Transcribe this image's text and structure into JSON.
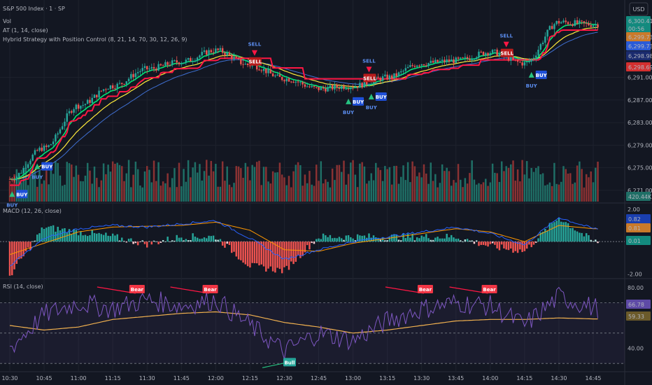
{
  "legend": {
    "symbol": "S&P 500 Index · 1 · SP",
    "vol": "Vol",
    "at": "AT (1, 14, close)",
    "strategy": "Hybrid Strategy with Position Control (8, 21, 14, 70, 30, 12, 26, 9)",
    "macd": "MACD (12, 26, close)",
    "rsi": "RSI (14, close)"
  },
  "currency": "USD",
  "colors": {
    "up": "#26a69a",
    "down": "#ef5350",
    "bg": "#131722",
    "grid": "#1e222d",
    "macd": "#2962ff",
    "signal": "#ff9800",
    "rsi": "#7e57c2",
    "rsima": "#f0b04f",
    "buy": "#1e4fd8",
    "sell": "#b71c1c"
  },
  "price_badges": {
    "last": "6,300.41",
    "countdown": "00:56",
    "orange": "6,299.73",
    "blue": "6,299.73",
    "navy": "6,298.98",
    "red": "6,298.69",
    "vol": "420.44K"
  },
  "macd_badges": {
    "macd": "0.82",
    "signal": "0.81",
    "hist": "0.01"
  },
  "rsi_badges": {
    "rsi": "66.78",
    "ma": "59.33"
  },
  "chart_data": [
    {
      "type": "line",
      "title": "S&P 500 Index · 1 · SP",
      "x": [
        "10:30",
        "10:45",
        "11:00",
        "11:15",
        "11:30",
        "11:45",
        "12:00",
        "12:15",
        "12:30",
        "12:45",
        "13:00",
        "13:15",
        "13:30",
        "13:45",
        "14:00",
        "14:15",
        "14:30",
        "14:45"
      ],
      "series": [
        {
          "values": [
            6273.0,
            6278.5,
            6286.0,
            6289.5,
            6292.5,
            6293.8,
            6295.8,
            6293.2,
            6290.8,
            6289.0,
            6289.5,
            6291.0,
            6293.5,
            6294.0,
            6295.5,
            6293.5,
            6300.8,
            6300.4
          ]
        }
      ],
      "ylim": [
        6269.0,
        6301.5
      ],
      "y_ticks": [
        "6,271.00",
        "6,275.00",
        "6,279.00",
        "6,283.00",
        "6,287.00",
        "6,291.00"
      ],
      "signals": [
        {
          "label": "BUY",
          "type": "buy",
          "time": "10:31"
        },
        {
          "label": "BUY",
          "type": "buy",
          "time": "10:42"
        },
        {
          "label": "SELL",
          "type": "sell",
          "time": "12:17"
        },
        {
          "label": "BUY",
          "type": "buy",
          "time": "12:58"
        },
        {
          "label": "SELL",
          "type": "sell",
          "time": "13:07"
        },
        {
          "label": "BUY",
          "type": "buy",
          "time": "13:08"
        },
        {
          "label": "SELL",
          "type": "sell",
          "time": "14:07"
        },
        {
          "label": "BUY",
          "type": "buy",
          "time": "14:18"
        }
      ],
      "signal_text": {
        "buy": "BUY",
        "sell": "SELL"
      }
    },
    {
      "type": "line",
      "title": "MACD (12, 26, close)",
      "series": [
        {
          "values": [
            -1.5,
            0.2,
            0.8,
            1.0,
            0.9,
            1.1,
            1.3,
            0.2,
            -1.1,
            -0.5,
            0.0,
            0.3,
            0.6,
            0.9,
            0.5,
            -0.2,
            1.5,
            0.8
          ]
        },
        {
          "values": [
            -0.8,
            -0.1,
            0.6,
            0.9,
            0.95,
            1.0,
            1.2,
            0.7,
            -0.5,
            -0.6,
            -0.1,
            0.2,
            0.5,
            0.8,
            0.6,
            0.0,
            1.0,
            0.8
          ]
        }
      ],
      "ylim": [
        -2.2,
        2.3
      ],
      "y_ticks": [
        "2.00",
        "-2.00"
      ]
    },
    {
      "type": "line",
      "title": "RSI (14, close)",
      "series": [
        {
          "values": [
            40,
            62,
            70,
            66,
            72,
            68,
            72,
            55,
            38,
            50,
            45,
            58,
            66,
            70,
            68,
            55,
            74,
            66.78
          ]
        },
        {
          "values": [
            55,
            52,
            54,
            59,
            61,
            63,
            64,
            62,
            57,
            54,
            50,
            52,
            55,
            58,
            59,
            59,
            60,
            59.33
          ]
        }
      ],
      "ylim": [
        25,
        85
      ],
      "y_ticks": [
        "80.00",
        "40.00"
      ],
      "divergences": [
        {
          "label": "Bear",
          "time": "11:25"
        },
        {
          "label": "Bear",
          "time": "11:57"
        },
        {
          "label": "Bull",
          "time": "12:32"
        },
        {
          "label": "Bear",
          "time": "13:31"
        },
        {
          "label": "Bear",
          "time": "13:59"
        }
      ]
    }
  ]
}
